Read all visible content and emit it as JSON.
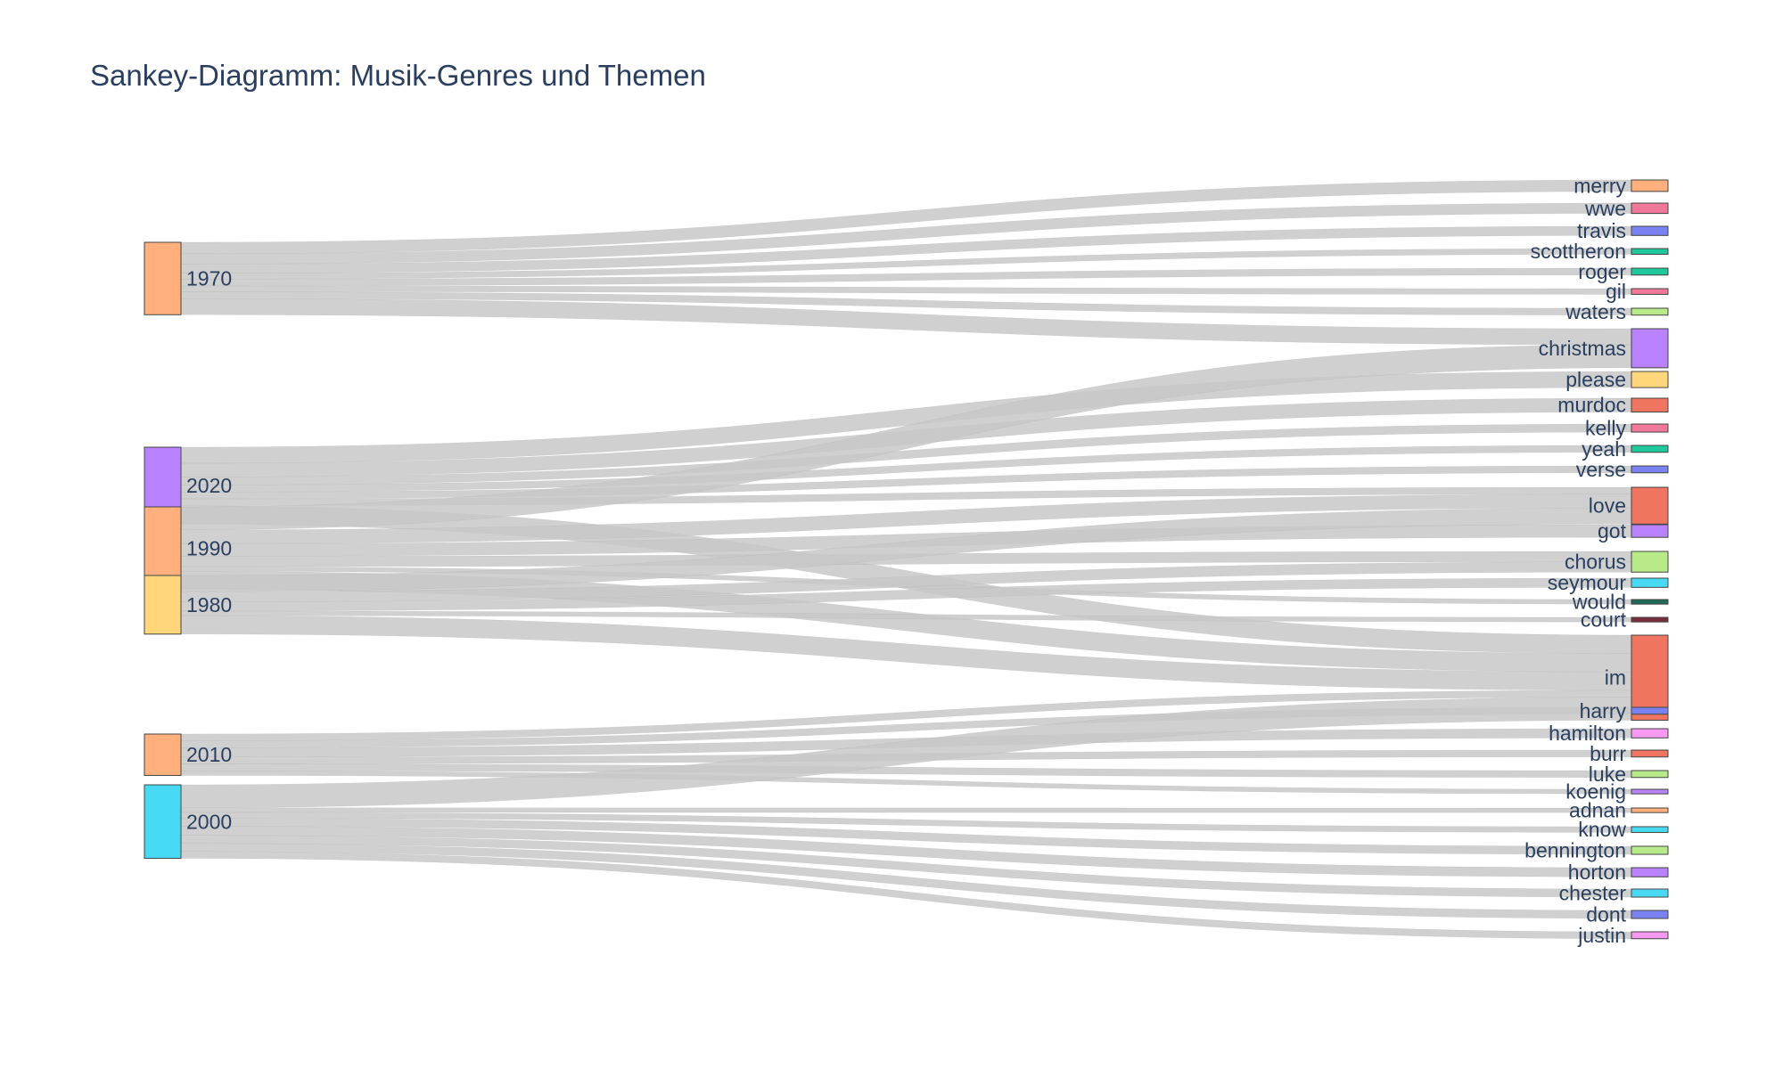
{
  "title": "Sankey-Diagramm: Musik-Genres und Themen",
  "chart_data": {
    "type": "sankey",
    "title": "Sankey-Diagramm: Musik-Genres und Themen",
    "link_color": "#c8c8c8",
    "sources": [
      {
        "name": "1970",
        "color": "#FFB07C"
      },
      {
        "name": "2020",
        "color": "#B982FF"
      },
      {
        "name": "1990",
        "color": "#FFB07C"
      },
      {
        "name": "1980",
        "color": "#FFD67A"
      },
      {
        "name": "2010",
        "color": "#FFB07C"
      },
      {
        "name": "2000",
        "color": "#48DAF5"
      }
    ],
    "targets": [
      {
        "name": "merry",
        "color": "#FFB07C"
      },
      {
        "name": "wwe",
        "color": "#F0789A"
      },
      {
        "name": "travis",
        "color": "#7A82F2"
      },
      {
        "name": "scottheron",
        "color": "#1FC89A"
      },
      {
        "name": "roger",
        "color": "#1FC89A"
      },
      {
        "name": "gil",
        "color": "#F0789A"
      },
      {
        "name": "waters",
        "color": "#B8EA8A"
      },
      {
        "name": "christmas",
        "color": "#B982FF"
      },
      {
        "name": "please",
        "color": "#FFD67A"
      },
      {
        "name": "murdoc",
        "color": "#F07560"
      },
      {
        "name": "kelly",
        "color": "#F0789A"
      },
      {
        "name": "yeah",
        "color": "#1FC89A"
      },
      {
        "name": "verse",
        "color": "#7A82F2"
      },
      {
        "name": "love",
        "color": "#F07560"
      },
      {
        "name": "got",
        "color": "#B982FF"
      },
      {
        "name": "chorus",
        "color": "#B8EA8A"
      },
      {
        "name": "seymour",
        "color": "#48DAF5"
      },
      {
        "name": "would",
        "color": "#1F6B5A"
      },
      {
        "name": "court",
        "color": "#7A2F3F"
      },
      {
        "name": "im",
        "color": "#F07560"
      },
      {
        "name": "harry",
        "color": "#7A82F2"
      },
      {
        "name": "hamilton",
        "color": "#F59AF0"
      },
      {
        "name": "burr",
        "color": "#F07560"
      },
      {
        "name": "luke",
        "color": "#B8EA8A"
      },
      {
        "name": "koenig",
        "color": "#B982FF"
      },
      {
        "name": "adnan",
        "color": "#FFB07C"
      },
      {
        "name": "know",
        "color": "#48DAF5"
      },
      {
        "name": "bennington",
        "color": "#B8EA8A"
      },
      {
        "name": "horton",
        "color": "#B982FF"
      },
      {
        "name": "chester",
        "color": "#48DAF5"
      },
      {
        "name": "dont",
        "color": "#7A82F2"
      },
      {
        "name": "justin",
        "color": "#F59AF0"
      }
    ],
    "links": [
      {
        "source": "1970",
        "target": "merry",
        "value": 10
      },
      {
        "source": "1970",
        "target": "wwe",
        "value": 9
      },
      {
        "source": "1970",
        "target": "travis",
        "value": 8
      },
      {
        "source": "1970",
        "target": "scottheron",
        "value": 5
      },
      {
        "source": "1970",
        "target": "roger",
        "value": 6
      },
      {
        "source": "1970",
        "target": "gil",
        "value": 5
      },
      {
        "source": "1970",
        "target": "waters",
        "value": 6
      },
      {
        "source": "1970",
        "target": "christmas",
        "value": 14
      },
      {
        "source": "2020",
        "target": "please",
        "value": 14
      },
      {
        "source": "2020",
        "target": "murdoc",
        "value": 12
      },
      {
        "source": "2020",
        "target": "kelly",
        "value": 7
      },
      {
        "source": "2020",
        "target": "yeah",
        "value": 6
      },
      {
        "source": "2020",
        "target": "verse",
        "value": 6
      },
      {
        "source": "2020",
        "target": "love",
        "value": 6
      },
      {
        "source": "2020",
        "target": "im",
        "value": 16
      },
      {
        "source": "1990",
        "target": "christmas",
        "value": 20
      },
      {
        "source": "1990",
        "target": "love",
        "value": 12
      },
      {
        "source": "1990",
        "target": "got",
        "value": 11
      },
      {
        "source": "1990",
        "target": "chorus",
        "value": 9
      },
      {
        "source": "1990",
        "target": "would",
        "value": 4
      },
      {
        "source": "1990",
        "target": "im",
        "value": 16
      },
      {
        "source": "1980",
        "target": "love",
        "value": 14
      },
      {
        "source": "1980",
        "target": "chorus",
        "value": 9
      },
      {
        "source": "1980",
        "target": "seymour",
        "value": 8
      },
      {
        "source": "1980",
        "target": "court",
        "value": 4
      },
      {
        "source": "1980",
        "target": "im",
        "value": 16
      },
      {
        "source": "2010",
        "target": "im",
        "value": 6
      },
      {
        "source": "2010",
        "target": "harry",
        "value": 6
      },
      {
        "source": "2010",
        "target": "hamilton",
        "value": 8
      },
      {
        "source": "2010",
        "target": "burr",
        "value": 6
      },
      {
        "source": "2010",
        "target": "luke",
        "value": 6
      },
      {
        "source": "2010",
        "target": "koenig",
        "value": 4
      },
      {
        "source": "2000",
        "target": "im",
        "value": 20
      },
      {
        "source": "2000",
        "target": "adnan",
        "value": 4
      },
      {
        "source": "2000",
        "target": "know",
        "value": 5
      },
      {
        "source": "2000",
        "target": "bennington",
        "value": 7
      },
      {
        "source": "2000",
        "target": "horton",
        "value": 8
      },
      {
        "source": "2000",
        "target": "chester",
        "value": 7
      },
      {
        "source": "2000",
        "target": "dont",
        "value": 7
      },
      {
        "source": "2000",
        "target": "justin",
        "value": 6
      }
    ]
  }
}
